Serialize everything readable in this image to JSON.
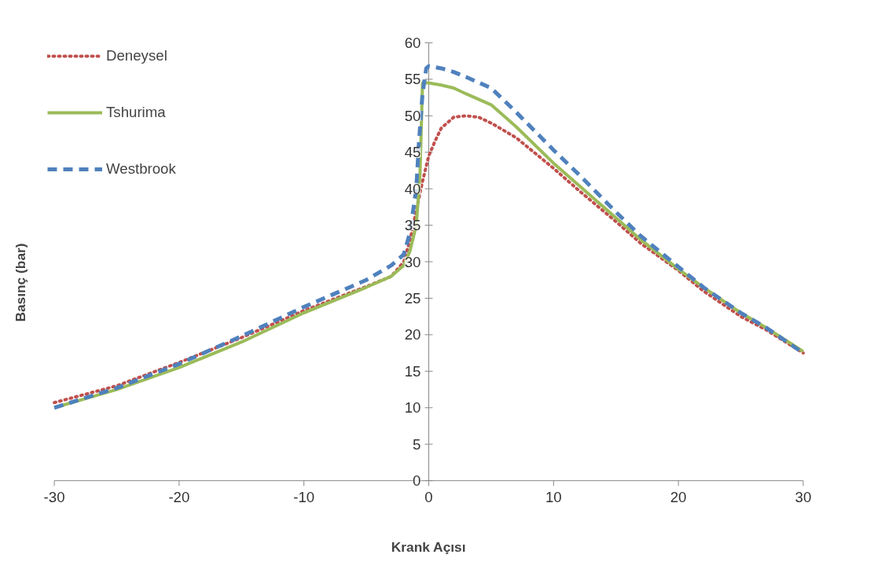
{
  "chart_data": {
    "type": "line",
    "xlabel": "Krank Açısı",
    "ylabel": "Basınç (bar)",
    "xlim": [
      -30,
      30
    ],
    "xticks": [
      -30,
      -20,
      -10,
      0,
      10,
      20,
      30
    ],
    "ylim": [
      0,
      60
    ],
    "yticks": [
      0,
      5,
      10,
      15,
      20,
      25,
      30,
      35,
      40,
      45,
      50,
      55,
      60
    ],
    "grid": false,
    "legend": "top left",
    "series": [
      {
        "name": "Deneysel",
        "color": "#c0504d",
        "line_style": "dotted",
        "x": [
          -30,
          -25,
          -20,
          -15,
          -10,
          -5,
          -3,
          -2,
          -1.5,
          -1,
          -0.5,
          0,
          0.5,
          1,
          2,
          3,
          4,
          5,
          7,
          10,
          12,
          15,
          17,
          20,
          22,
          25,
          27,
          30
        ],
        "values": [
          10.7,
          13,
          16.2,
          19.6,
          23.3,
          26.6,
          28,
          30,
          33,
          37,
          41,
          44.5,
          46.5,
          48.3,
          49.8,
          50,
          49.8,
          49,
          47,
          42.8,
          39.8,
          35.5,
          32.5,
          28.8,
          26,
          22.5,
          20.7,
          17.5
        ]
      },
      {
        "name": "Tshurima",
        "color": "#9bbb59",
        "line_style": "solid",
        "x": [
          -30,
          -25,
          -20,
          -15,
          -10,
          -5,
          -3,
          -2,
          -1.5,
          -1,
          -0.7,
          -0.5,
          0,
          1,
          2,
          3,
          5,
          7,
          10,
          12,
          15,
          17,
          20,
          22,
          25,
          27,
          30
        ],
        "values": [
          10,
          12.5,
          15.5,
          19,
          23,
          26.5,
          28,
          29.5,
          31.5,
          35,
          42,
          54.5,
          54.5,
          54.2,
          53.8,
          53,
          51.5,
          48.5,
          43.5,
          40.5,
          36,
          33,
          29,
          26.5,
          23,
          21,
          17.7
        ]
      },
      {
        "name": "Westbrook",
        "color": "#4f81bd",
        "line_style": "dashed",
        "x": [
          -30,
          -25,
          -20,
          -15,
          -10,
          -5,
          -3,
          -2,
          -1.5,
          -1,
          -0.8,
          -0.5,
          -0.2,
          0,
          1,
          2,
          3,
          5,
          7,
          10,
          12,
          15,
          17,
          20,
          22,
          25,
          27,
          30
        ],
        "values": [
          10,
          12.7,
          16,
          19.8,
          23.8,
          27.5,
          29.5,
          31,
          34,
          40,
          46,
          53,
          56.5,
          56.8,
          56.5,
          56,
          55.3,
          53.8,
          50.5,
          45.3,
          42,
          36.8,
          33.5,
          29.3,
          26.5,
          23,
          21,
          17.5
        ]
      }
    ]
  }
}
